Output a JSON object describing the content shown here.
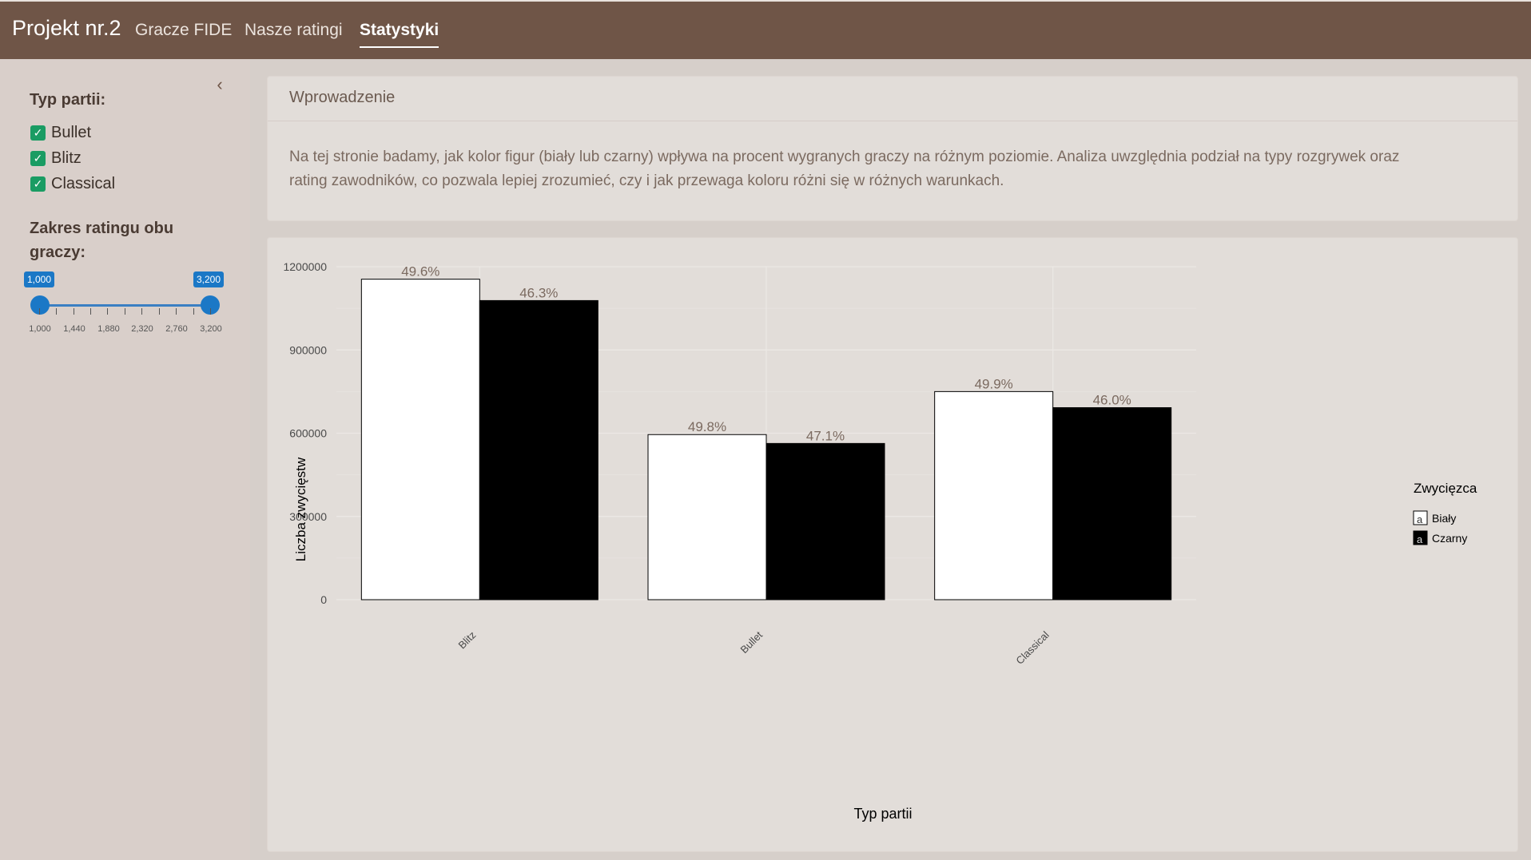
{
  "navbar": {
    "brand": "Projekt nr.2",
    "tabs": [
      {
        "label": "Gracze FIDE"
      },
      {
        "label": "Nasze ratingi"
      },
      {
        "label": "Statystyki"
      }
    ]
  },
  "sidebar": {
    "collapse_icon": "chevron-left",
    "game_type_label": "Typ partii:",
    "game_types": [
      {
        "label": "Bullet",
        "checked": true
      },
      {
        "label": "Blitz",
        "checked": true
      },
      {
        "label": "Classical",
        "checked": true
      }
    ],
    "rating_label": "Zakres ratingu obu graczy:",
    "rating_label_line1": "Zakres ratingu obu",
    "rating_label_line2": "graczy:",
    "slider": {
      "min": 1000,
      "max": 3200,
      "from_label": "1,000",
      "to_label": "3,200",
      "tick_labels": [
        "1,000",
        "1,440",
        "1,880",
        "2,320",
        "2,760",
        "3,200"
      ]
    }
  },
  "intro": {
    "title": "Wprowadzenie",
    "text": "Na tej stronie badamy, jak kolor figur (biały lub czarny) wpływa na procent wygranych graczy na różnym poziomie. Analiza uwzględnia podział na typy rozgrywek oraz rating zawodników, co pozwala lepiej zrozumieć, czy i jak przewaga koloru różni się w różnych warunkach."
  },
  "colors": {
    "navbar": "#6f5547",
    "sidebar": "#d9cfca",
    "checkbox": "#1a9c63",
    "slider": "#1b78c6",
    "bar_white": "#ffffff",
    "bar_black": "#000000",
    "percent_label": "#7b6a60"
  },
  "chart_data": {
    "type": "bar",
    "categories": [
      "Blitz",
      "Bullet",
      "Classical"
    ],
    "series": [
      {
        "name": "Biały",
        "values": [
          1155000,
          595000,
          750000
        ],
        "labels": [
          "49.6%",
          "49.8%",
          "49.9%"
        ],
        "color": "#ffffff"
      },
      {
        "name": "Czarny",
        "values": [
          1078000,
          563000,
          692000
        ],
        "labels": [
          "46.3%",
          "47.1%",
          "46.0%"
        ],
        "color": "#000000"
      }
    ],
    "xlabel": "Typ partii",
    "ylabel": "Liczba zwycięstw",
    "ylim": [
      0,
      1200000
    ],
    "yticks": [
      0,
      300000,
      600000,
      900000,
      1200000
    ],
    "ytick_labels": [
      "0",
      "300000",
      "600000",
      "900000",
      "1200000"
    ],
    "legend_title": "Zwycięzca",
    "legend_position": "right",
    "grid": true
  }
}
